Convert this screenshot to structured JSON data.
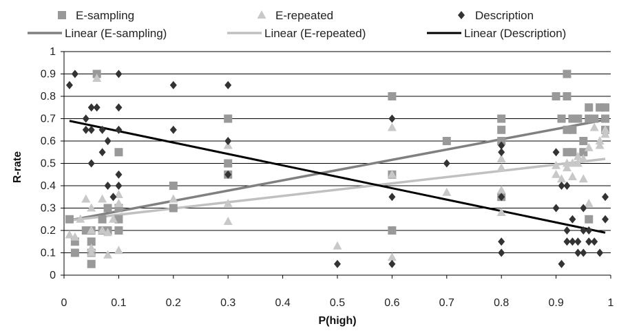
{
  "chart_data": {
    "type": "scatter",
    "title": "",
    "xlabel": "P(high)",
    "ylabel": "R-rate",
    "xlim": [
      0,
      1
    ],
    "ylim": [
      0,
      1
    ],
    "grid": "horizontal",
    "legend_position": "top",
    "x_ticks": [
      "0",
      "0.1",
      "0.2",
      "0.3",
      "0.4",
      "0.5",
      "0.6",
      "0.7",
      "0.8",
      "0.9",
      "1"
    ],
    "y_ticks": [
      "0",
      "0.1",
      "0.2",
      "0.3",
      "0.4",
      "0.5",
      "0.6",
      "0.7",
      "0.8",
      "0.9",
      "1"
    ],
    "series": [
      {
        "name": "E-sampling",
        "marker": "square",
        "color": "#999999",
        "points": [
          [
            0.01,
            0.25
          ],
          [
            0.02,
            0.1
          ],
          [
            0.02,
            0.15
          ],
          [
            0.04,
            0.2
          ],
          [
            0.05,
            0.05
          ],
          [
            0.05,
            0.1
          ],
          [
            0.05,
            0.15
          ],
          [
            0.05,
            0.2
          ],
          [
            0.06,
            0.9
          ],
          [
            0.07,
            0.2
          ],
          [
            0.07,
            0.25
          ],
          [
            0.08,
            0.3
          ],
          [
            0.08,
            0.2
          ],
          [
            0.1,
            0.55
          ],
          [
            0.1,
            0.3
          ],
          [
            0.1,
            0.25
          ],
          [
            0.1,
            0.2
          ],
          [
            0.2,
            0.4
          ],
          [
            0.2,
            0.3
          ],
          [
            0.3,
            0.7
          ],
          [
            0.3,
            0.5
          ],
          [
            0.3,
            0.45
          ],
          [
            0.6,
            0.8
          ],
          [
            0.6,
            0.45
          ],
          [
            0.6,
            0.2
          ],
          [
            0.7,
            0.6
          ],
          [
            0.8,
            0.7
          ],
          [
            0.8,
            0.65
          ],
          [
            0.8,
            0.6
          ],
          [
            0.8,
            0.35
          ],
          [
            0.9,
            0.8
          ],
          [
            0.91,
            0.7
          ],
          [
            0.92,
            0.9
          ],
          [
            0.92,
            0.8
          ],
          [
            0.92,
            0.65
          ],
          [
            0.92,
            0.55
          ],
          [
            0.93,
            0.7
          ],
          [
            0.93,
            0.65
          ],
          [
            0.93,
            0.55
          ],
          [
            0.94,
            0.7
          ],
          [
            0.95,
            0.6
          ],
          [
            0.95,
            0.55
          ],
          [
            0.96,
            0.75
          ],
          [
            0.96,
            0.7
          ],
          [
            0.96,
            0.25
          ],
          [
            0.97,
            0.7
          ],
          [
            0.98,
            0.75
          ],
          [
            0.99,
            0.75
          ],
          [
            0.99,
            0.65
          ],
          [
            0.99,
            0.7
          ]
        ]
      },
      {
        "name": "E-repeated",
        "marker": "triangle",
        "color": "#c8c8c8",
        "points": [
          [
            0.01,
            0.18
          ],
          [
            0.02,
            0.17
          ],
          [
            0.03,
            0.25
          ],
          [
            0.04,
            0.34
          ],
          [
            0.05,
            0.3
          ],
          [
            0.05,
            0.2
          ],
          [
            0.05,
            0.12
          ],
          [
            0.05,
            0.1
          ],
          [
            0.06,
            0.88
          ],
          [
            0.07,
            0.34
          ],
          [
            0.07,
            0.2
          ],
          [
            0.08,
            0.19
          ],
          [
            0.08,
            0.09
          ],
          [
            0.09,
            0.25
          ],
          [
            0.1,
            0.36
          ],
          [
            0.1,
            0.32
          ],
          [
            0.1,
            0.11
          ],
          [
            0.2,
            0.34
          ],
          [
            0.3,
            0.58
          ],
          [
            0.3,
            0.32
          ],
          [
            0.3,
            0.24
          ],
          [
            0.5,
            0.13
          ],
          [
            0.6,
            0.66
          ],
          [
            0.6,
            0.45
          ],
          [
            0.6,
            0.08
          ],
          [
            0.7,
            0.37
          ],
          [
            0.8,
            0.52
          ],
          [
            0.8,
            0.48
          ],
          [
            0.8,
            0.38
          ],
          [
            0.8,
            0.28
          ],
          [
            0.9,
            0.49
          ],
          [
            0.9,
            0.45
          ],
          [
            0.91,
            0.43
          ],
          [
            0.92,
            0.5
          ],
          [
            0.92,
            0.48
          ],
          [
            0.93,
            0.5
          ],
          [
            0.93,
            0.44
          ],
          [
            0.94,
            0.53
          ],
          [
            0.94,
            0.5
          ],
          [
            0.95,
            0.52
          ],
          [
            0.95,
            0.43
          ],
          [
            0.96,
            0.57
          ],
          [
            0.96,
            0.32
          ],
          [
            0.97,
            0.66
          ],
          [
            0.98,
            0.6
          ],
          [
            0.98,
            0.58
          ],
          [
            0.99,
            0.65
          ],
          [
            0.99,
            0.63
          ]
        ]
      },
      {
        "name": "Description",
        "marker": "diamond",
        "color": "#333333",
        "points": [
          [
            0.01,
            0.85
          ],
          [
            0.02,
            0.9
          ],
          [
            0.04,
            0.7
          ],
          [
            0.04,
            0.65
          ],
          [
            0.05,
            0.75
          ],
          [
            0.05,
            0.65
          ],
          [
            0.05,
            0.5
          ],
          [
            0.06,
            0.75
          ],
          [
            0.07,
            0.65
          ],
          [
            0.07,
            0.55
          ],
          [
            0.08,
            0.6
          ],
          [
            0.08,
            0.4
          ],
          [
            0.09,
            0.35
          ],
          [
            0.1,
            0.9
          ],
          [
            0.1,
            0.75
          ],
          [
            0.1,
            0.65
          ],
          [
            0.1,
            0.45
          ],
          [
            0.1,
            0.4
          ],
          [
            0.2,
            0.85
          ],
          [
            0.2,
            0.65
          ],
          [
            0.3,
            0.85
          ],
          [
            0.3,
            0.6
          ],
          [
            0.3,
            0.45
          ],
          [
            0.5,
            0.05
          ],
          [
            0.6,
            0.7
          ],
          [
            0.6,
            0.35
          ],
          [
            0.6,
            0.05
          ],
          [
            0.7,
            0.5
          ],
          [
            0.8,
            0.58
          ],
          [
            0.8,
            0.55
          ],
          [
            0.8,
            0.35
          ],
          [
            0.8,
            0.15
          ],
          [
            0.8,
            0.1
          ],
          [
            0.9,
            0.55
          ],
          [
            0.9,
            0.3
          ],
          [
            0.91,
            0.4
          ],
          [
            0.91,
            0.05
          ],
          [
            0.92,
            0.4
          ],
          [
            0.92,
            0.2
          ],
          [
            0.92,
            0.15
          ],
          [
            0.93,
            0.25
          ],
          [
            0.93,
            0.15
          ],
          [
            0.94,
            0.15
          ],
          [
            0.94,
            0.1
          ],
          [
            0.95,
            0.3
          ],
          [
            0.95,
            0.2
          ],
          [
            0.95,
            0.1
          ],
          [
            0.96,
            0.2
          ],
          [
            0.96,
            0.15
          ],
          [
            0.97,
            0.15
          ],
          [
            0.98,
            0.1
          ],
          [
            0.99,
            0.35
          ],
          [
            0.99,
            0.25
          ]
        ]
      }
    ],
    "trendlines": [
      {
        "name": "Linear (E-sampling)",
        "color": "#808080",
        "x": [
          0.01,
          0.99
        ],
        "y": [
          0.245,
          0.695
        ]
      },
      {
        "name": "Linear (E-repeated)",
        "color": "#c0c0c0",
        "x": [
          0.01,
          0.99
        ],
        "y": [
          0.245,
          0.52
        ]
      },
      {
        "name": "Linear (Description)",
        "color": "#000000",
        "x": [
          0.01,
          0.99
        ],
        "y": [
          0.69,
          0.19
        ]
      }
    ]
  }
}
